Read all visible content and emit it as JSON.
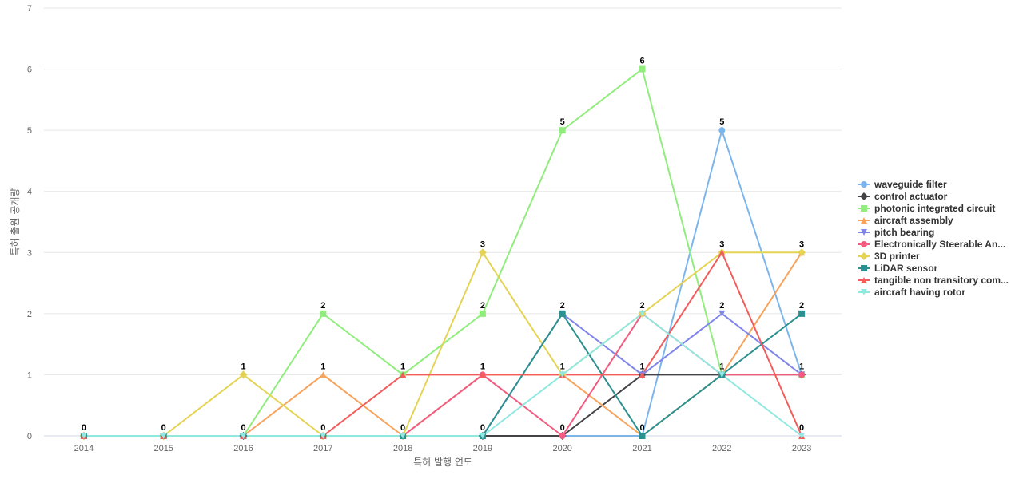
{
  "chart_data": {
    "type": "line",
    "title": "",
    "xlabel": "특허 발행 연도",
    "ylabel": "특허 출원 공개량",
    "categories": [
      "2014",
      "2015",
      "2016",
      "2017",
      "2018",
      "2019",
      "2020",
      "2021",
      "2022",
      "2023"
    ],
    "ylim": [
      0,
      7
    ],
    "yticks": [
      "0",
      "1",
      "2",
      "3",
      "4",
      "5",
      "6",
      "7"
    ],
    "grid": true,
    "legend_position": "right",
    "series": [
      {
        "name": "waveguide filter",
        "color": "#7cb5ec",
        "marker": "circle",
        "values": [
          0,
          0,
          0,
          0,
          0,
          0,
          0,
          0,
          5,
          1
        ]
      },
      {
        "name": "control actuator",
        "color": "#434348",
        "marker": "diamond",
        "values": [
          0,
          0,
          0,
          0,
          0,
          0,
          0,
          1,
          1,
          1
        ]
      },
      {
        "name": "photonic integrated circuit",
        "color": "#90ed7d",
        "marker": "square",
        "values": [
          0,
          0,
          0,
          2,
          1,
          2,
          5,
          6,
          1,
          1
        ]
      },
      {
        "name": "aircraft assembly",
        "color": "#f7a35c",
        "marker": "triangle",
        "values": [
          0,
          0,
          0,
          1,
          0,
          1,
          1,
          0,
          1,
          3
        ]
      },
      {
        "name": "pitch bearing",
        "color": "#8085e9",
        "marker": "triangle-down",
        "values": [
          0,
          0,
          0,
          0,
          0,
          0,
          2,
          1,
          2,
          1
        ]
      },
      {
        "name": "Electronically Steerable An...",
        "color": "#f15c80",
        "marker": "circle",
        "values": [
          0,
          0,
          0,
          0,
          0,
          1,
          0,
          2,
          1,
          1
        ]
      },
      {
        "name": "3D printer",
        "color": "#e4d354",
        "marker": "diamond",
        "values": [
          0,
          0,
          1,
          0,
          0,
          3,
          1,
          2,
          3,
          3
        ]
      },
      {
        "name": "LiDAR sensor",
        "color": "#2b908f",
        "marker": "square",
        "values": [
          0,
          0,
          0,
          0,
          0,
          0,
          2,
          0,
          1,
          2
        ]
      },
      {
        "name": "tangible non transitory com...",
        "color": "#f45b5b",
        "marker": "triangle",
        "values": [
          0,
          0,
          0,
          0,
          1,
          1,
          1,
          1,
          3,
          0
        ]
      },
      {
        "name": "aircraft having rotor",
        "color": "#91e8e1",
        "marker": "triangle-down",
        "values": [
          0,
          0,
          0,
          0,
          0,
          0,
          1,
          2,
          1,
          0
        ]
      }
    ],
    "data_labels": [
      {
        "x": "2014",
        "value": 0
      },
      {
        "x": "2015",
        "value": 0
      },
      {
        "x": "2016",
        "value": 1
      },
      {
        "x": "2016",
        "value": 0
      },
      {
        "x": "2017",
        "value": 2
      },
      {
        "x": "2017",
        "value": 1
      },
      {
        "x": "2017",
        "value": 0
      },
      {
        "x": "2018",
        "value": 1
      },
      {
        "x": "2018",
        "value": 0
      },
      {
        "x": "2019",
        "value": 3
      },
      {
        "x": "2019",
        "value": 2
      },
      {
        "x": "2019",
        "value": 1
      },
      {
        "x": "2019",
        "value": 0
      },
      {
        "x": "2020",
        "value": 5
      },
      {
        "x": "2020",
        "value": 2
      },
      {
        "x": "2020",
        "value": 1
      },
      {
        "x": "2020",
        "value": 0
      },
      {
        "x": "2021",
        "value": 6
      },
      {
        "x": "2021",
        "value": 2
      },
      {
        "x": "2021",
        "value": 1
      },
      {
        "x": "2021",
        "value": 0
      },
      {
        "x": "2022",
        "value": 5
      },
      {
        "x": "2022",
        "value": 3
      },
      {
        "x": "2022",
        "value": 2
      },
      {
        "x": "2022",
        "value": 1
      },
      {
        "x": "2023",
        "value": 3
      },
      {
        "x": "2023",
        "value": 2
      },
      {
        "x": "2023",
        "value": 1
      },
      {
        "x": "2023",
        "value": 0
      }
    ]
  }
}
